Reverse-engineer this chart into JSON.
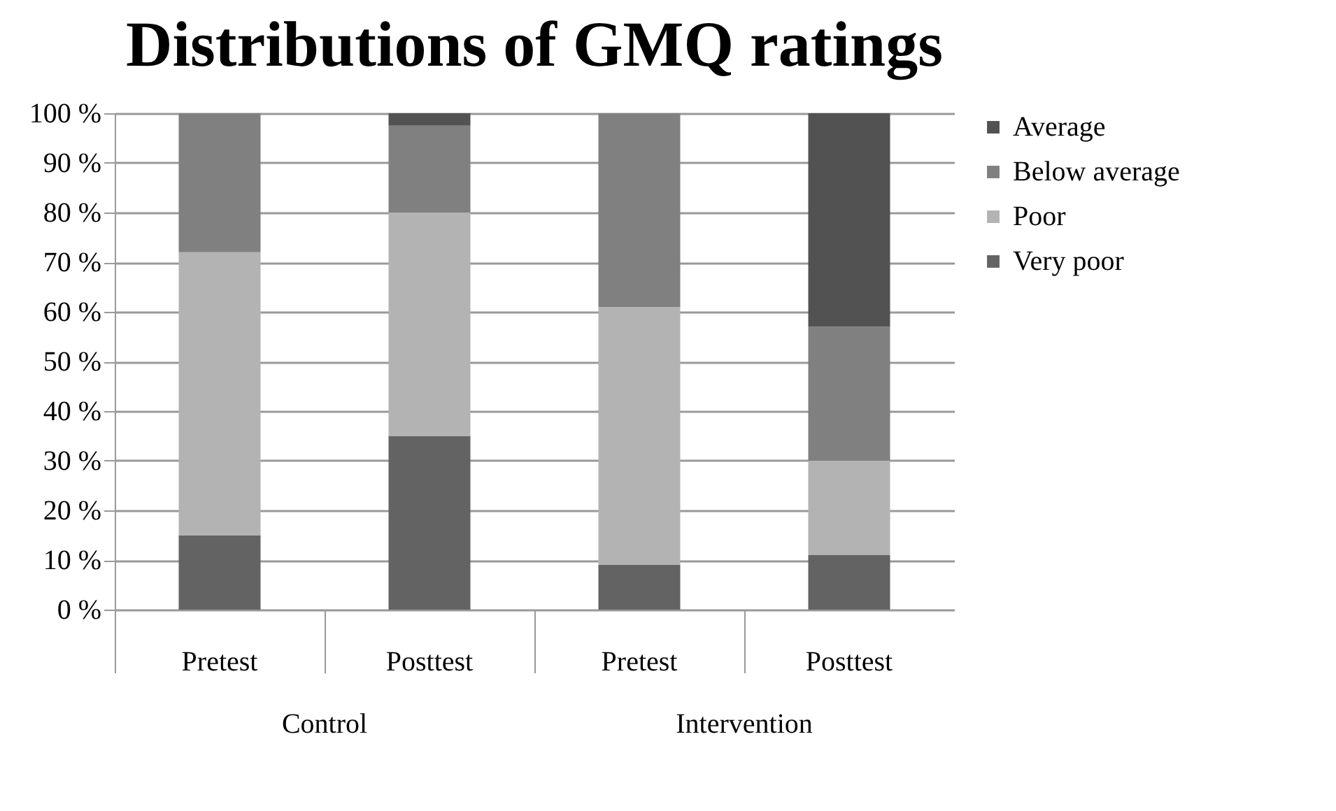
{
  "chart_data": {
    "type": "bar",
    "title": "Distributions of GMQ ratings",
    "stacked": true,
    "categories": [
      "Pretest",
      "Posttest",
      "Pretest",
      "Posttest"
    ],
    "series": [
      {
        "name": "Very poor",
        "color": "#636363",
        "values": [
          15,
          35,
          9,
          11
        ]
      },
      {
        "name": "Poor",
        "color": "#b3b3b3",
        "values": [
          57,
          45,
          52,
          19
        ]
      },
      {
        "name": "Below average",
        "color": "#808080",
        "values": [
          28,
          17.5,
          39,
          27
        ]
      },
      {
        "name": "Average",
        "color": "#525252",
        "values": [
          0,
          2.5,
          0,
          43
        ]
      }
    ],
    "ylim": [
      0,
      100
    ],
    "yticks": [
      {
        "value": 0,
        "label": "0 %"
      },
      {
        "value": 10,
        "label": "10 %"
      },
      {
        "value": 20,
        "label": "20 %"
      },
      {
        "value": 30,
        "label": "30 %"
      },
      {
        "value": 40,
        "label": "40 %"
      },
      {
        "value": 50,
        "label": "50 %"
      },
      {
        "value": 60,
        "label": "60 %"
      },
      {
        "value": 70,
        "label": "70 %"
      },
      {
        "value": 80,
        "label": "80 %"
      },
      {
        "value": 90,
        "label": "90 %"
      },
      {
        "value": 100,
        "label": "100 %"
      }
    ],
    "annotations": [
      "Control",
      "Intervention"
    ],
    "grid": "y",
    "legend": "right"
  }
}
